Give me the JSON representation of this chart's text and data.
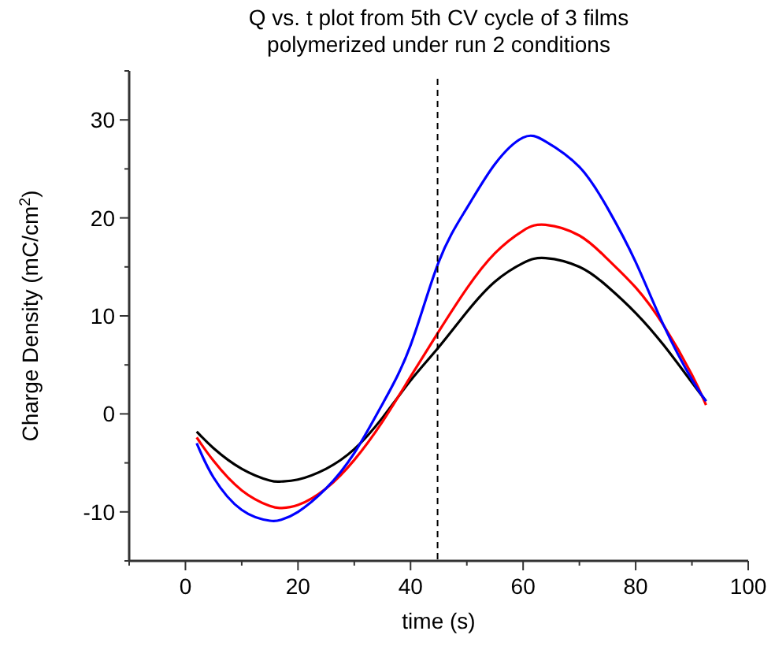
{
  "chart_data": {
    "type": "line",
    "title": "Q vs. t plot from 5th CV cycle of 3 films\npolymerized under run 2 conditions",
    "xlabel": "time (s)",
    "ylabel": "Charge Density (mC/cm$^{2}$)",
    "x": [
      2,
      5,
      10,
      15,
      17,
      20,
      25,
      30,
      35,
      40,
      45,
      50,
      55,
      60,
      64,
      70,
      75,
      80,
      85,
      90,
      92.5
    ],
    "series": [
      {
        "color": "#000000",
        "values": [
          -1.8,
          -3.5,
          -5.6,
          -6.8,
          -6.9,
          -6.7,
          -5.6,
          -3.6,
          -0.4,
          3.4,
          6.8,
          10.4,
          13.5,
          15.4,
          15.9,
          15.0,
          13.0,
          10.3,
          7.0,
          3.2,
          1.3
        ]
      },
      {
        "color": "#ff0000",
        "values": [
          -2.4,
          -4.8,
          -7.8,
          -9.4,
          -9.6,
          -9.3,
          -7.6,
          -4.7,
          -0.8,
          3.8,
          8.4,
          12.8,
          16.4,
          18.7,
          19.3,
          18.2,
          15.8,
          12.9,
          9.0,
          4.0,
          0.9
        ]
      },
      {
        "color": "#0000ff",
        "values": [
          -3.0,
          -6.5,
          -9.8,
          -10.9,
          -10.8,
          -10.0,
          -7.6,
          -4.0,
          1.0,
          7.0,
          15.5,
          21.0,
          25.5,
          28.2,
          27.8,
          25.2,
          21.0,
          15.5,
          9.0,
          3.5,
          1.3
        ]
      }
    ],
    "xlim": [
      -10,
      100
    ],
    "xticks": [
      0,
      20,
      40,
      60,
      80,
      100
    ],
    "ylim": [
      -15,
      35
    ],
    "yticks": [
      {
        "value": -10,
        "label": "-10"
      },
      0,
      10,
      20,
      30
    ],
    "ref_lines": [
      {
        "axis": "x",
        "value": 44.8,
        "line_style": "dashed",
        "color": "#000000"
      }
    ],
    "grid": false,
    "marker": "none",
    "line_style": "solid"
  }
}
